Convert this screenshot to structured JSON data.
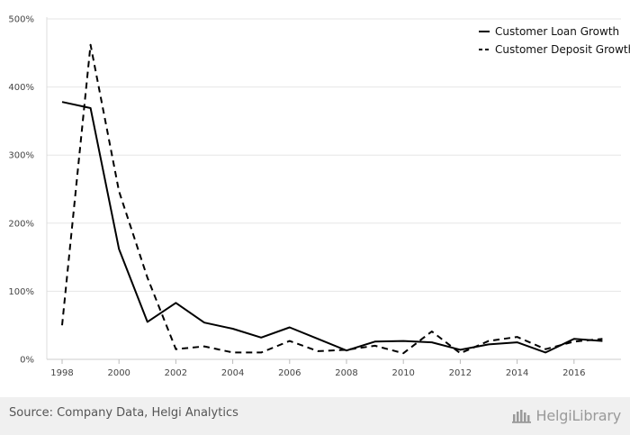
{
  "chart_data": {
    "type": "line",
    "x": [
      1998,
      1999,
      2000,
      2001,
      2002,
      2003,
      2004,
      2005,
      2006,
      2007,
      2008,
      2009,
      2010,
      2011,
      2012,
      2013,
      2014,
      2015,
      2016,
      2017
    ],
    "series": [
      {
        "name": "Customer Loan Growth",
        "style": "solid",
        "color": "#000000",
        "values": [
          378,
          369,
          162,
          55,
          83,
          54,
          45,
          32,
          47,
          30,
          13,
          26,
          27,
          25,
          14,
          22,
          25,
          10,
          30,
          27
        ]
      },
      {
        "name": "Customer Deposit Growth",
        "style": "dashed",
        "color": "#000000",
        "values": [
          50,
          462,
          247,
          120,
          15,
          19,
          10,
          10,
          27,
          12,
          14,
          20,
          9,
          41,
          9,
          27,
          33,
          15,
          26,
          30
        ]
      }
    ],
    "title": "",
    "xlabel": "",
    "ylabel": "",
    "ylim": [
      0,
      500
    ],
    "yticks": [
      "0%",
      "100%",
      "200%",
      "300%",
      "400%",
      "500%"
    ],
    "xticks": [
      "1998",
      "2000",
      "2002",
      "2004",
      "2006",
      "2008",
      "2010",
      "2012",
      "2014",
      "2016"
    ],
    "grid": true,
    "legend_position": "top-right"
  },
  "footer": {
    "source": "Source: Company Data, Helgi Analytics",
    "brand_name": "HelgiLibrary",
    "brand_color": "#9a9a9a",
    "background": "#f0f0f0"
  }
}
